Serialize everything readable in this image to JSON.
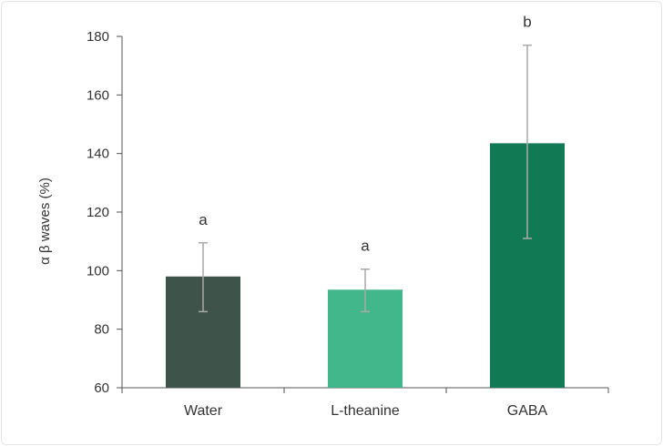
{
  "chart_data": {
    "type": "bar",
    "title": "",
    "xlabel": "",
    "ylabel": "α β waves (%)",
    "ylim": [
      60,
      180
    ],
    "yticks": [
      60,
      80,
      100,
      120,
      140,
      160,
      180
    ],
    "grid": false,
    "legend": "none",
    "categories": [
      "Water",
      "L-theanine",
      "GABA"
    ],
    "values": [
      98,
      93.5,
      143.5
    ],
    "error_low": [
      86,
      86,
      111
    ],
    "error_high": [
      109.5,
      100.5,
      177
    ],
    "significance": [
      "a",
      "a",
      "b"
    ],
    "colors": [
      "#3e5349",
      "#42b78b",
      "#117a55"
    ],
    "error_bar_color": "#a9a9a9",
    "axis_color": "#555555"
  }
}
